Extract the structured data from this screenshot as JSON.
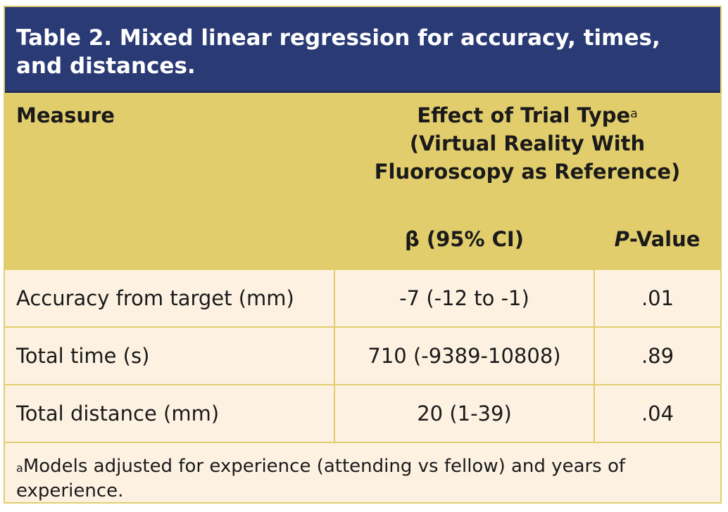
{
  "title": "Table 2. Mixed linear regression for accuracy, times, and distances.",
  "header": {
    "measure_label": "Measure",
    "group_line1": "Effect of Trial Type",
    "group_line1_sup": "a",
    "group_line2": "(Virtual Reality With",
    "group_line3": "Fluoroscopy as Reference)",
    "col_beta": "β (95% CI)",
    "col_p_italic": "P",
    "col_p_rest": "-Value"
  },
  "rows": [
    {
      "measure": "Accuracy from target (mm)",
      "beta": "-7 (-12 to -1)",
      "p": ".01"
    },
    {
      "measure": "Total time (s)",
      "beta": "710 (-9389-10808)",
      "p": ".89"
    },
    {
      "measure": "Total distance (mm)",
      "beta": "20 (1-39)",
      "p": ".04"
    }
  ],
  "footnote": {
    "marker": "a",
    "text": "Models adjusted for experience (attending vs fellow) and years of experience."
  },
  "colors": {
    "title_bg": "#2a3a75",
    "header_bg": "#e2cd6d",
    "body_bg": "#fdf2e2"
  }
}
